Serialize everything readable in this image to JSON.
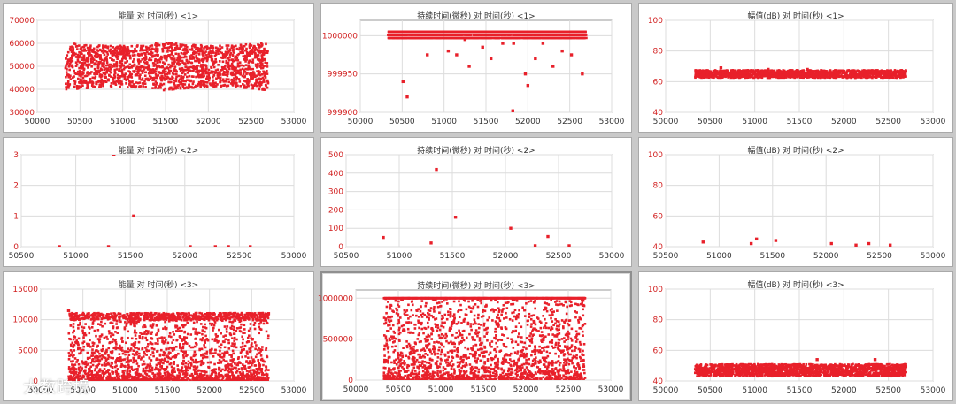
{
  "colors": {
    "marker": "#e8202a",
    "tick_text": "#d22020",
    "grid": "#dcdcdc",
    "axis": "#9a9a9a"
  },
  "watermark": {
    "text": "大数跨境",
    "icon": "play-circle-icon"
  },
  "chart_data": [
    {
      "id": "p11",
      "type": "scatter",
      "title": "能量 对 时间(秒) <1>",
      "xlim": [
        50000,
        53000
      ],
      "ylim": [
        30000,
        70000
      ],
      "xticks": [
        50000,
        50500,
        51000,
        51500,
        52000,
        52500,
        53000
      ],
      "yticks": [
        30000,
        40000,
        50000,
        60000,
        70000
      ],
      "dense": {
        "x_range": [
          50330,
          52700
        ],
        "n": 1800,
        "kind": "band_wave",
        "center": 50000,
        "half_spread": 10500
      },
      "series": [
        {
          "x": [],
          "y": []
        }
      ]
    },
    {
      "id": "p12",
      "type": "scatter",
      "title": "持续时间(微秒) 对 时间(秒) <1>",
      "xlim": [
        50000,
        53000
      ],
      "ylim": [
        999900,
        1000020
      ],
      "xticks": [
        50000,
        50500,
        51000,
        51500,
        52000,
        52500,
        53000
      ],
      "yticks": [
        999900,
        999950,
        1000000
      ],
      "dense": {
        "x_range": [
          50330,
          52700
        ],
        "n": 1800,
        "kind": "top_line",
        "top": 1000005,
        "rows": [
          1000005,
          1000001,
          999997
        ]
      },
      "series": [
        {
          "x": [
            50510,
            50560,
            51150,
            51300,
            51460,
            51560,
            51700,
            51820,
            51970,
            52000,
            52090,
            52180,
            52300,
            52410,
            52520,
            52650,
            51830,
            51050,
            50800,
            51250
          ],
          "y": [
            999940,
            999920,
            999975,
            999960,
            999985,
            999970,
            999990,
            999902,
            999950,
            999935,
            999970,
            999990,
            999960,
            999980,
            999975,
            999950,
            999990,
            999980,
            999975,
            999995
          ]
        }
      ]
    },
    {
      "id": "p13",
      "type": "scatter",
      "title": "幅值(dB) 对 时间(秒) <1>",
      "xlim": [
        50000,
        53000
      ],
      "ylim": [
        40,
        100
      ],
      "xticks": [
        50000,
        50500,
        51000,
        51500,
        52000,
        52500,
        53000
      ],
      "yticks": [
        40,
        60,
        80,
        100
      ],
      "dense": {
        "x_range": [
          50330,
          52700
        ],
        "n": 1500,
        "kind": "flat_band",
        "center": 65,
        "half_spread": 2.5
      },
      "series": [
        {
          "x": [
            50620,
            51150,
            51590
          ],
          "y": [
            69,
            68,
            68
          ]
        }
      ]
    },
    {
      "id": "p21",
      "type": "scatter",
      "title": "能量 对 时间(秒) <2>",
      "xlim": [
        50500,
        53000
      ],
      "ylim": [
        0,
        3
      ],
      "xticks": [
        50500,
        51000,
        51500,
        52000,
        52500,
        53000
      ],
      "yticks": [
        0,
        1,
        2,
        3
      ],
      "series": [
        {
          "x": [
            50850,
            51300,
            51350,
            51530,
            52050,
            52280,
            52400,
            52600
          ],
          "y": [
            0,
            0,
            3,
            1,
            0,
            0,
            0,
            0
          ]
        }
      ]
    },
    {
      "id": "p22",
      "type": "scatter",
      "title": "持续时间(微秒) 对 时间(秒) <2>",
      "xlim": [
        50500,
        53000
      ],
      "ylim": [
        0,
        500
      ],
      "xticks": [
        50500,
        51000,
        51500,
        52000,
        52500,
        53000
      ],
      "yticks": [
        0,
        100,
        200,
        300,
        400,
        500
      ],
      "series": [
        {
          "x": [
            50850,
            51300,
            51350,
            51530,
            52050,
            52280,
            52400,
            52600
          ],
          "y": [
            50,
            20,
            420,
            160,
            100,
            5,
            55,
            5
          ]
        }
      ]
    },
    {
      "id": "p23",
      "type": "scatter",
      "title": "幅值(dB) 对 时间(秒) <2>",
      "xlim": [
        50500,
        53000
      ],
      "ylim": [
        40,
        100
      ],
      "xticks": [
        50500,
        51000,
        51500,
        52000,
        52500,
        53000
      ],
      "yticks": [
        40,
        60,
        80,
        100
      ],
      "series": [
        {
          "x": [
            50850,
            51300,
            51350,
            51530,
            52050,
            52280,
            52400,
            52600
          ],
          "y": [
            43,
            42,
            45,
            44,
            42,
            41,
            42,
            41
          ]
        }
      ]
    },
    {
      "id": "p31",
      "type": "scatter",
      "title": "能量 对 时间(秒) <3>",
      "xlim": [
        50000,
        53000
      ],
      "ylim": [
        0,
        15000
      ],
      "xticks": [
        50000,
        50500,
        51000,
        51500,
        52000,
        52500,
        53000
      ],
      "yticks": [
        0,
        5000,
        10000,
        15000
      ],
      "dense": {
        "x_range": [
          50330,
          52700
        ],
        "n": 2600,
        "kind": "energy3",
        "top": 10500
      },
      "series": [
        {
          "x": [
            50330,
            52700
          ],
          "y": [
            11500,
            11000
          ]
        }
      ]
    },
    {
      "id": "p32",
      "type": "scatter",
      "title": "持续时间(微秒) 对 时间(秒) <3>",
      "xlim": [
        50000,
        53000
      ],
      "ylim": [
        0,
        1100000
      ],
      "xticks": [
        50000,
        50500,
        51000,
        51500,
        52000,
        52500,
        53000
      ],
      "yticks": [
        0,
        500000,
        1000000
      ],
      "dense": {
        "x_range": [
          50330,
          52700
        ],
        "n": 2600,
        "kind": "duration3",
        "top": 1000000
      },
      "series": [
        {
          "x": [],
          "y": []
        }
      ]
    },
    {
      "id": "p33",
      "type": "scatter",
      "title": "幅值(dB) 对 时间(秒) <3>",
      "xlim": [
        50000,
        53000
      ],
      "ylim": [
        40,
        100
      ],
      "xticks": [
        50000,
        50500,
        51000,
        51500,
        52000,
        52500,
        53000
      ],
      "yticks": [
        40,
        60,
        80,
        100
      ],
      "dense": {
        "x_range": [
          50330,
          52700
        ],
        "n": 1800,
        "kind": "flat_band",
        "center": 47,
        "half_spread": 4
      },
      "series": [
        {
          "x": [
            51700,
            52350
          ],
          "y": [
            54,
            54
          ]
        }
      ]
    }
  ]
}
